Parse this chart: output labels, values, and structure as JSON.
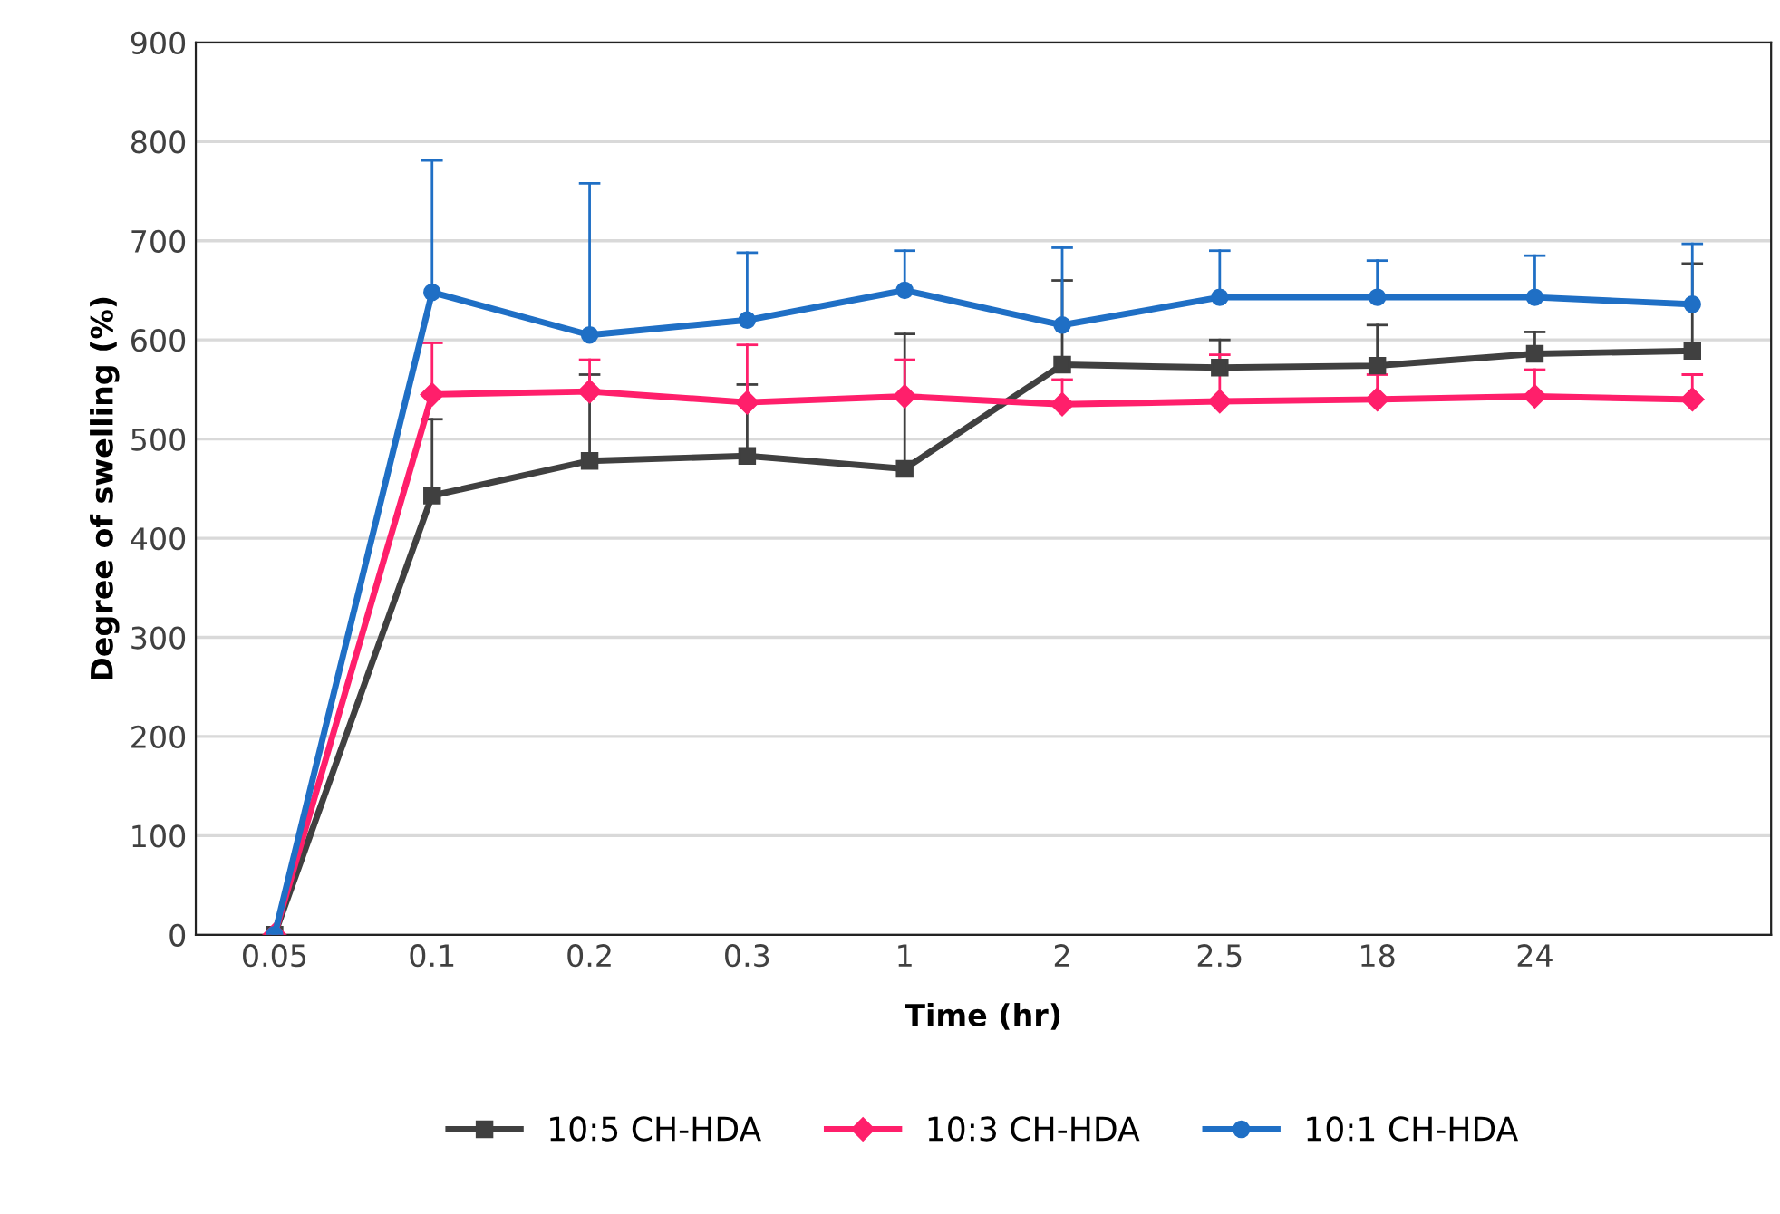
{
  "chart_data": {
    "type": "line",
    "xlabel": "Time (hr)",
    "ylabel": "Degree of swelling (%)",
    "categories": [
      "0.05",
      "0.1",
      "0.2",
      "0.3",
      "1",
      "2",
      "2.5",
      "18",
      "24",
      null
    ],
    "ylim": [
      0,
      900
    ],
    "yticks": [
      0,
      100,
      200,
      300,
      400,
      500,
      600,
      700,
      800,
      900
    ],
    "grid": "y",
    "legend": "bottom",
    "series": [
      {
        "name": "10:5 CH-HDA",
        "color": "#404040",
        "marker": "square",
        "values": [
          0,
          443,
          478,
          483,
          470,
          575,
          572,
          574,
          586,
          589
        ],
        "errors": [
          null,
          [
            443,
            520
          ],
          [
            478,
            565
          ],
          [
            483,
            555
          ],
          [
            470,
            606
          ],
          [
            575,
            660
          ],
          [
            572,
            600
          ],
          [
            574,
            615
          ],
          [
            586,
            608
          ],
          [
            589,
            677
          ]
        ]
      },
      {
        "name": "10:3 CH-HDA",
        "color": "#ff1f6b",
        "marker": "diamond",
        "values": [
          0,
          545,
          548,
          537,
          543,
          535,
          538,
          540,
          543,
          540
        ],
        "errors": [
          null,
          [
            545,
            597
          ],
          [
            548,
            580
          ],
          [
            537,
            595
          ],
          [
            543,
            580
          ],
          [
            535,
            560
          ],
          [
            538,
            585
          ],
          [
            540,
            565
          ],
          [
            543,
            570
          ],
          [
            540,
            565
          ]
        ]
      },
      {
        "name": "10:1 CH-HDA",
        "color": "#1f6fc5",
        "marker": "circle",
        "values": [
          0,
          648,
          605,
          620,
          650,
          615,
          643,
          643,
          643,
          636
        ],
        "errors": [
          null,
          [
            648,
            781
          ],
          [
            605,
            758
          ],
          [
            620,
            688
          ],
          [
            650,
            690
          ],
          [
            615,
            693
          ],
          [
            643,
            690
          ],
          [
            643,
            680
          ],
          [
            643,
            685
          ],
          [
            636,
            697
          ]
        ]
      }
    ]
  }
}
